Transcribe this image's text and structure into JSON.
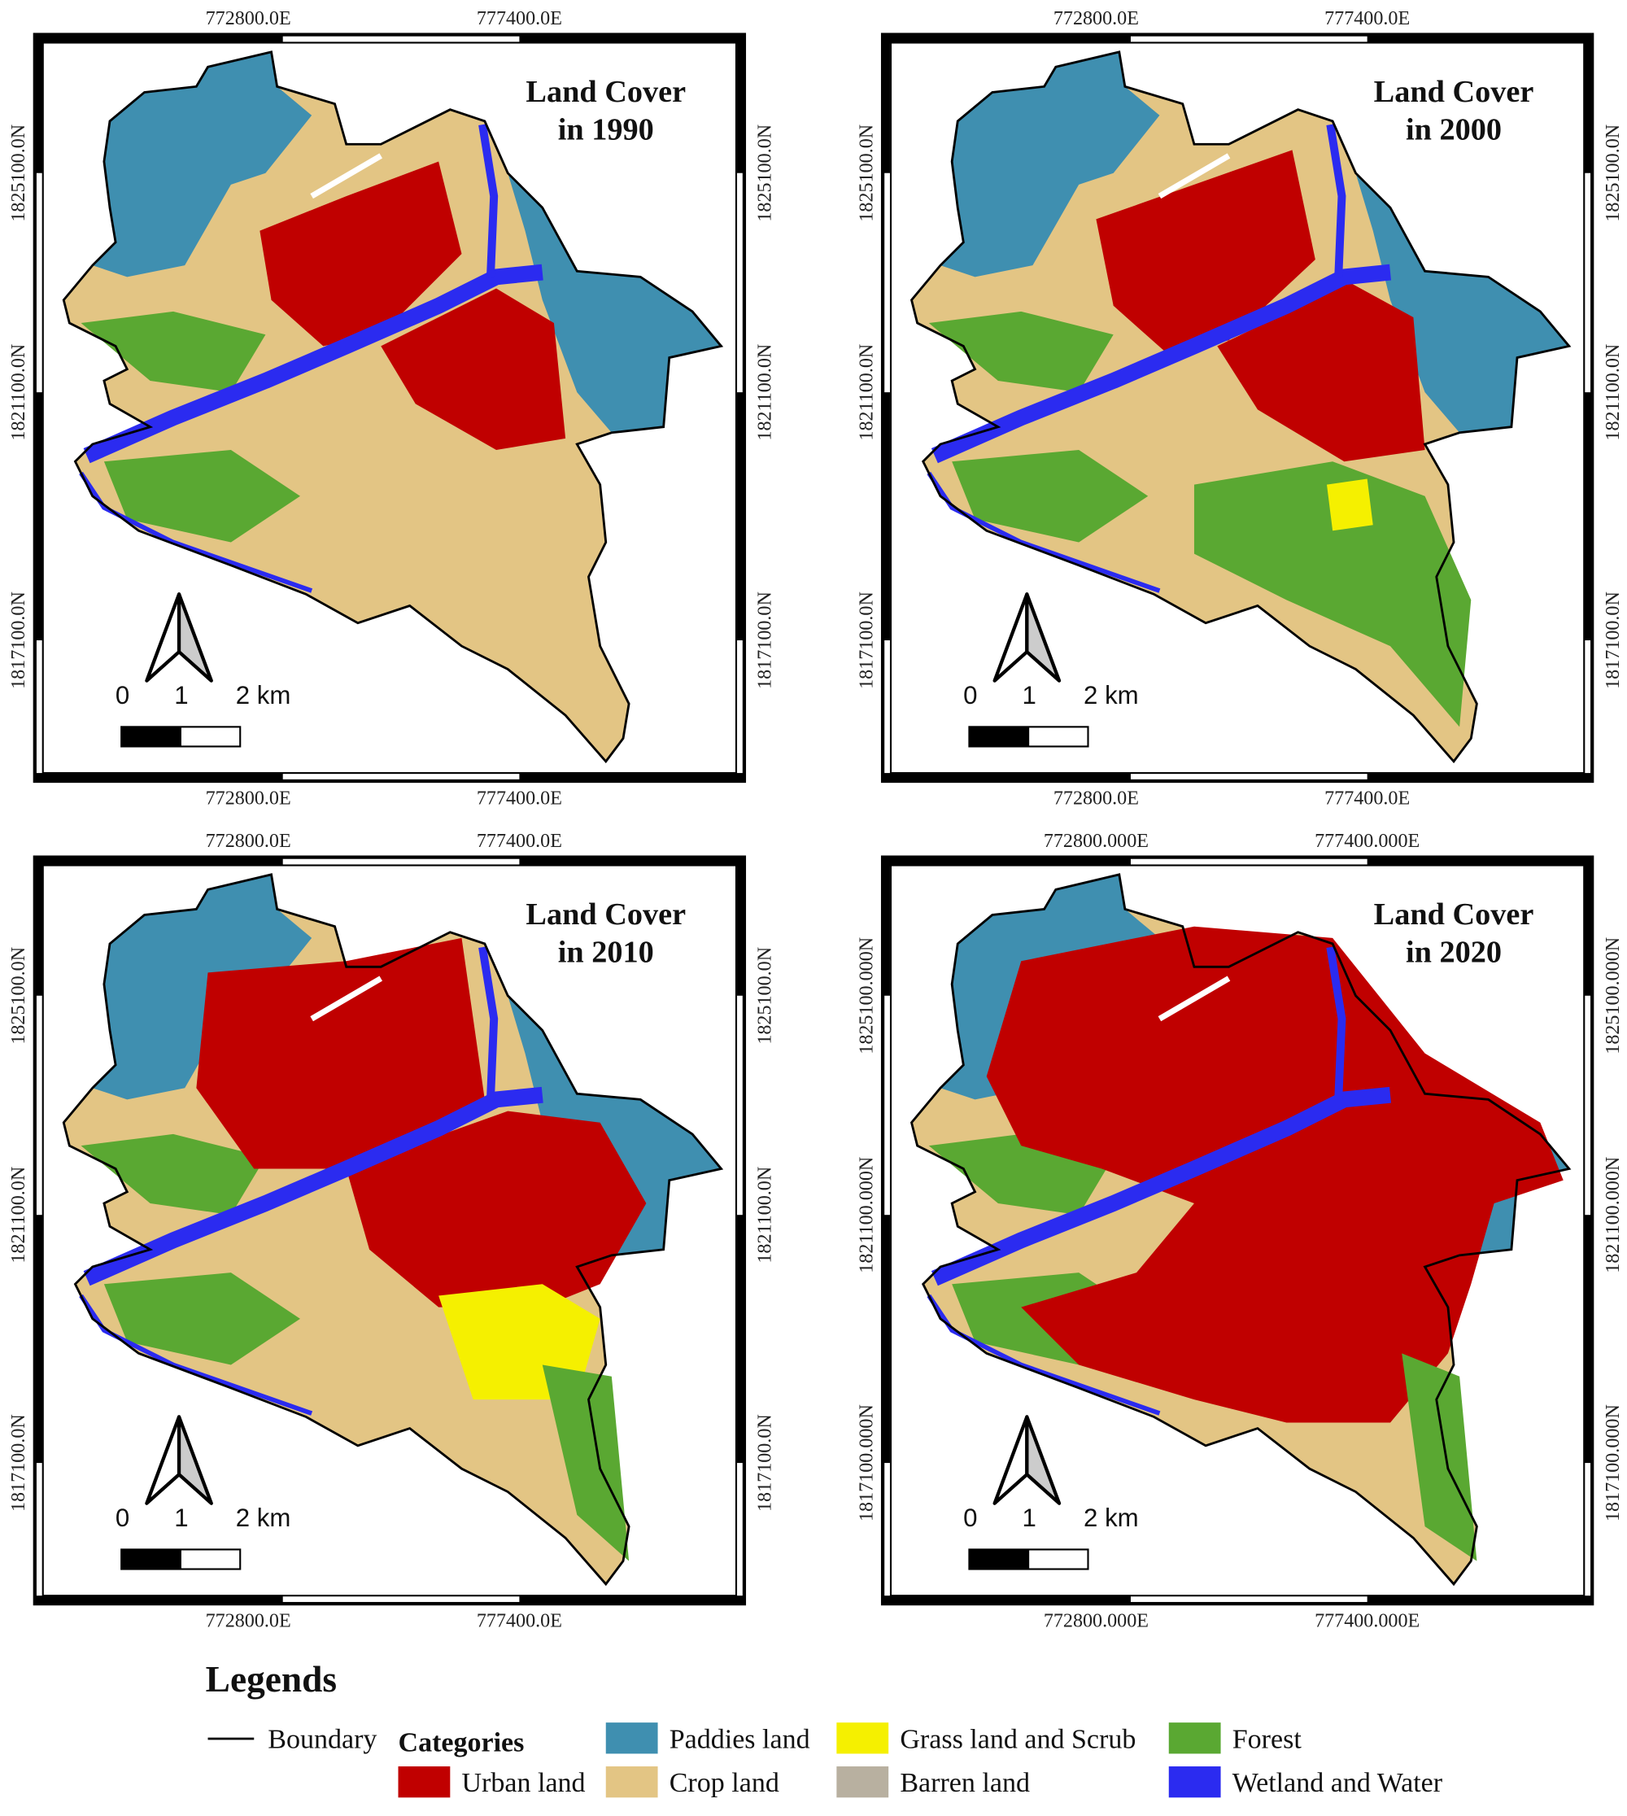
{
  "panels": [
    {
      "title": [
        "Land Cover",
        "in 1990"
      ],
      "x_labels_top": [
        "772800.0E",
        "777400.0E"
      ],
      "x_labels_bottom": [
        "772800.0E",
        "777400.0E"
      ],
      "y_labels_left": [
        "1825100.0N",
        "1821100.0N",
        "1817100.0N"
      ],
      "y_labels_right": [
        "1825100.0N",
        "1821100.0N",
        "1817100.0N"
      ],
      "scale_labels": [
        "0",
        "1",
        "2 km"
      ]
    },
    {
      "title": [
        "Land Cover",
        "in 2000"
      ],
      "x_labels_top": [
        "772800.0E",
        "777400.0E"
      ],
      "x_labels_bottom": [
        "772800.0E",
        "777400.0E"
      ],
      "y_labels_left": [
        "1825100.0N",
        "1821100.0N",
        "1817100.0N"
      ],
      "y_labels_right": [
        "1825100.0N",
        "1821100.0N",
        "1817100.0N"
      ],
      "scale_labels": [
        "0",
        "1",
        "2 km"
      ]
    },
    {
      "title": [
        "Land Cover",
        "in 2010"
      ],
      "x_labels_top": [
        "772800.0E",
        "777400.0E"
      ],
      "x_labels_bottom": [
        "772800.0E",
        "777400.0E"
      ],
      "y_labels_left": [
        "1825100.0N",
        "1821100.0N",
        "1817100.0N"
      ],
      "y_labels_right": [
        "1825100.0N",
        "1821100.0N",
        "1817100.0N"
      ],
      "scale_labels": [
        "0",
        "1",
        "2 km"
      ]
    },
    {
      "title": [
        "Land Cover",
        "in 2020"
      ],
      "x_labels_top": [
        "772800.000E",
        "777400.000E"
      ],
      "x_labels_bottom": [
        "772800.000E",
        "777400.000E"
      ],
      "y_labels_left": [
        "1825100.000N",
        "1821100.000N",
        "1817100.000N"
      ],
      "y_labels_right": [
        "1825100.000N",
        "1821100.000N",
        "1817100.000N"
      ],
      "scale_labels": [
        "0",
        "1",
        "2 km"
      ]
    }
  ],
  "legend": {
    "title": "Legends",
    "boundary": "Boundary",
    "categories_label": "Categories",
    "categories": [
      {
        "name": "Urban land",
        "color": "#c00000"
      },
      {
        "name": "Paddies land",
        "color": "#3f8fb0"
      },
      {
        "name": "Crop land",
        "color": "#e3c584"
      },
      {
        "name": "Grass land and Scrub",
        "color": "#f5f000"
      },
      {
        "name": "Barren land",
        "color": "#b8b0a0"
      },
      {
        "name": "Forest",
        "color": "#5aa832"
      },
      {
        "name": "Wetland and Water",
        "color": "#2b2bf0"
      }
    ]
  }
}
